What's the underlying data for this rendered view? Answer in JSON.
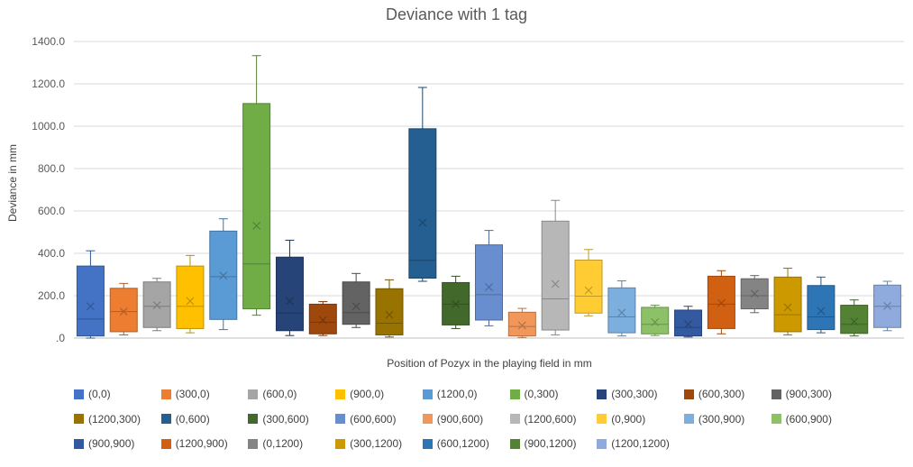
{
  "chart_data": {
    "type": "box",
    "title": "Deviance with 1 tag",
    "xlabel": "Position of Pozyx in the playing field in mm",
    "ylabel": "Deviance in mm",
    "ylim": [
      0,
      1400
    ],
    "yticks": [
      ".0",
      "200.0",
      "400.0",
      "600.0",
      "800.0",
      "1000.0",
      "1200.0",
      "1400.0"
    ],
    "grid": true,
    "legend_position": "bottom",
    "series": [
      {
        "name": "(0,0)",
        "color": "#4472C4",
        "min": 0,
        "q1": 10,
        "median": 90,
        "q3": 340,
        "max": 412,
        "mean": 150
      },
      {
        "name": "(300,0)",
        "color": "#ED7D31",
        "min": 15,
        "q1": 30,
        "median": 125,
        "q3": 235,
        "max": 258,
        "mean": 125
      },
      {
        "name": "(600,0)",
        "color": "#A5A5A5",
        "min": 35,
        "q1": 50,
        "median": 150,
        "q3": 265,
        "max": 282,
        "mean": 155
      },
      {
        "name": "(900,0)",
        "color": "#FFC000",
        "min": 25,
        "q1": 45,
        "median": 150,
        "q3": 340,
        "max": 390,
        "mean": 175
      },
      {
        "name": "(1200,0)",
        "color": "#5B9BD5",
        "min": 40,
        "q1": 88,
        "median": 290,
        "q3": 505,
        "max": 563,
        "mean": 295
      },
      {
        "name": "(0,300)",
        "color": "#70AD47",
        "min": 108,
        "q1": 138,
        "median": 350,
        "q3": 1107,
        "max": 1333,
        "mean": 530
      },
      {
        "name": "(300,300)",
        "color": "#264478",
        "min": 12,
        "q1": 35,
        "median": 118,
        "q3": 382,
        "max": 462,
        "mean": 175
      },
      {
        "name": "(600,300)",
        "color": "#9E480E",
        "min": 12,
        "q1": 20,
        "median": 75,
        "q3": 160,
        "max": 172,
        "mean": 85
      },
      {
        "name": "(900,300)",
        "color": "#636363",
        "min": 50,
        "q1": 65,
        "median": 120,
        "q3": 265,
        "max": 305,
        "mean": 150
      },
      {
        "name": "(1200,300)",
        "color": "#997300",
        "min": 5,
        "q1": 15,
        "median": 70,
        "q3": 233,
        "max": 275,
        "mean": 110
      },
      {
        "name": "(0,600)",
        "color": "#255E91",
        "min": 268,
        "q1": 283,
        "median": 367,
        "q3": 988,
        "max": 1183,
        "mean": 545
      },
      {
        "name": "(300,600)",
        "color": "#43682B",
        "min": 45,
        "q1": 62,
        "median": 160,
        "q3": 262,
        "max": 292,
        "mean": 160
      },
      {
        "name": "(600,600)",
        "color": "#698ED0",
        "min": 58,
        "q1": 85,
        "median": 205,
        "q3": 440,
        "max": 508,
        "mean": 240
      },
      {
        "name": "(900,600)",
        "color": "#F1975A",
        "min": 3,
        "q1": 10,
        "median": 55,
        "q3": 122,
        "max": 140,
        "mean": 60
      },
      {
        "name": "(1200,600)",
        "color": "#B7B7B7",
        "min": 15,
        "q1": 38,
        "median": 185,
        "q3": 552,
        "max": 650,
        "mean": 255
      },
      {
        "name": "(0,900)",
        "color": "#FFCD33",
        "min": 105,
        "q1": 118,
        "median": 198,
        "q3": 368,
        "max": 418,
        "mean": 225
      },
      {
        "name": "(300,900)",
        "color": "#7CAFDD",
        "min": 10,
        "q1": 25,
        "median": 100,
        "q3": 237,
        "max": 270,
        "mean": 120
      },
      {
        "name": "(600,900)",
        "color": "#8CC168",
        "min": 12,
        "q1": 20,
        "median": 65,
        "q3": 145,
        "max": 155,
        "mean": 75
      },
      {
        "name": "(900,900)",
        "color": "#335AA1",
        "min": 5,
        "q1": 10,
        "median": 50,
        "q3": 132,
        "max": 150,
        "mean": 65
      },
      {
        "name": "(1200,900)",
        "color": "#D26012",
        "min": 20,
        "q1": 45,
        "median": 160,
        "q3": 292,
        "max": 318,
        "mean": 165
      },
      {
        "name": "(0,1200)",
        "color": "#848484",
        "min": 120,
        "q1": 138,
        "median": 200,
        "q3": 280,
        "max": 295,
        "mean": 210
      },
      {
        "name": "(300,1200)",
        "color": "#CC9A00",
        "min": 15,
        "q1": 30,
        "median": 110,
        "q3": 288,
        "max": 330,
        "mean": 145
      },
      {
        "name": "(600,1200)",
        "color": "#2E75B6",
        "min": 25,
        "q1": 40,
        "median": 100,
        "q3": 248,
        "max": 288,
        "mean": 128
      },
      {
        "name": "(900,1200)",
        "color": "#548235",
        "min": 10,
        "q1": 22,
        "median": 65,
        "q3": 155,
        "max": 180,
        "mean": 78
      },
      {
        "name": "(1200,1200)",
        "color": "#8FAADC",
        "min": 35,
        "q1": 50,
        "median": 150,
        "q3": 250,
        "max": 268,
        "mean": 152
      }
    ]
  }
}
